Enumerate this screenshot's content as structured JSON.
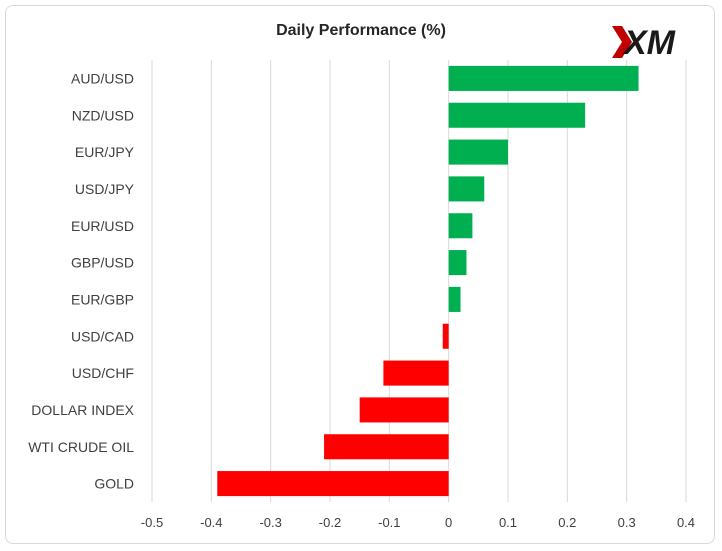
{
  "chart_data": {
    "type": "bar",
    "orientation": "horizontal",
    "title": "Daily Performance (%)",
    "xlabel": "",
    "ylabel": "",
    "xlim": [
      -0.5,
      0.4
    ],
    "x_ticks": [
      "-0.5",
      "-0.4",
      "-0.3",
      "-0.2",
      "-0.1",
      "0",
      "0.1",
      "0.2",
      "0.3",
      "0.4"
    ],
    "grid": true,
    "categories": [
      "AUD/USD",
      "NZD/USD",
      "EUR/JPY",
      "USD/JPY",
      "EUR/USD",
      "GBP/USD",
      "EUR/GBP",
      "USD/CAD",
      "USD/CHF",
      "DOLLAR INDEX",
      "WTI CRUDE OIL",
      "GOLD"
    ],
    "values": [
      0.32,
      0.23,
      0.1,
      0.06,
      0.04,
      0.03,
      0.02,
      -0.01,
      -0.11,
      -0.15,
      -0.21,
      -0.39
    ],
    "positive_color": "#00b050",
    "negative_color": "#ff0000"
  },
  "logo": {
    "text": "XM",
    "accent_color": "#c00000",
    "text_color": "#1a1a1a"
  }
}
